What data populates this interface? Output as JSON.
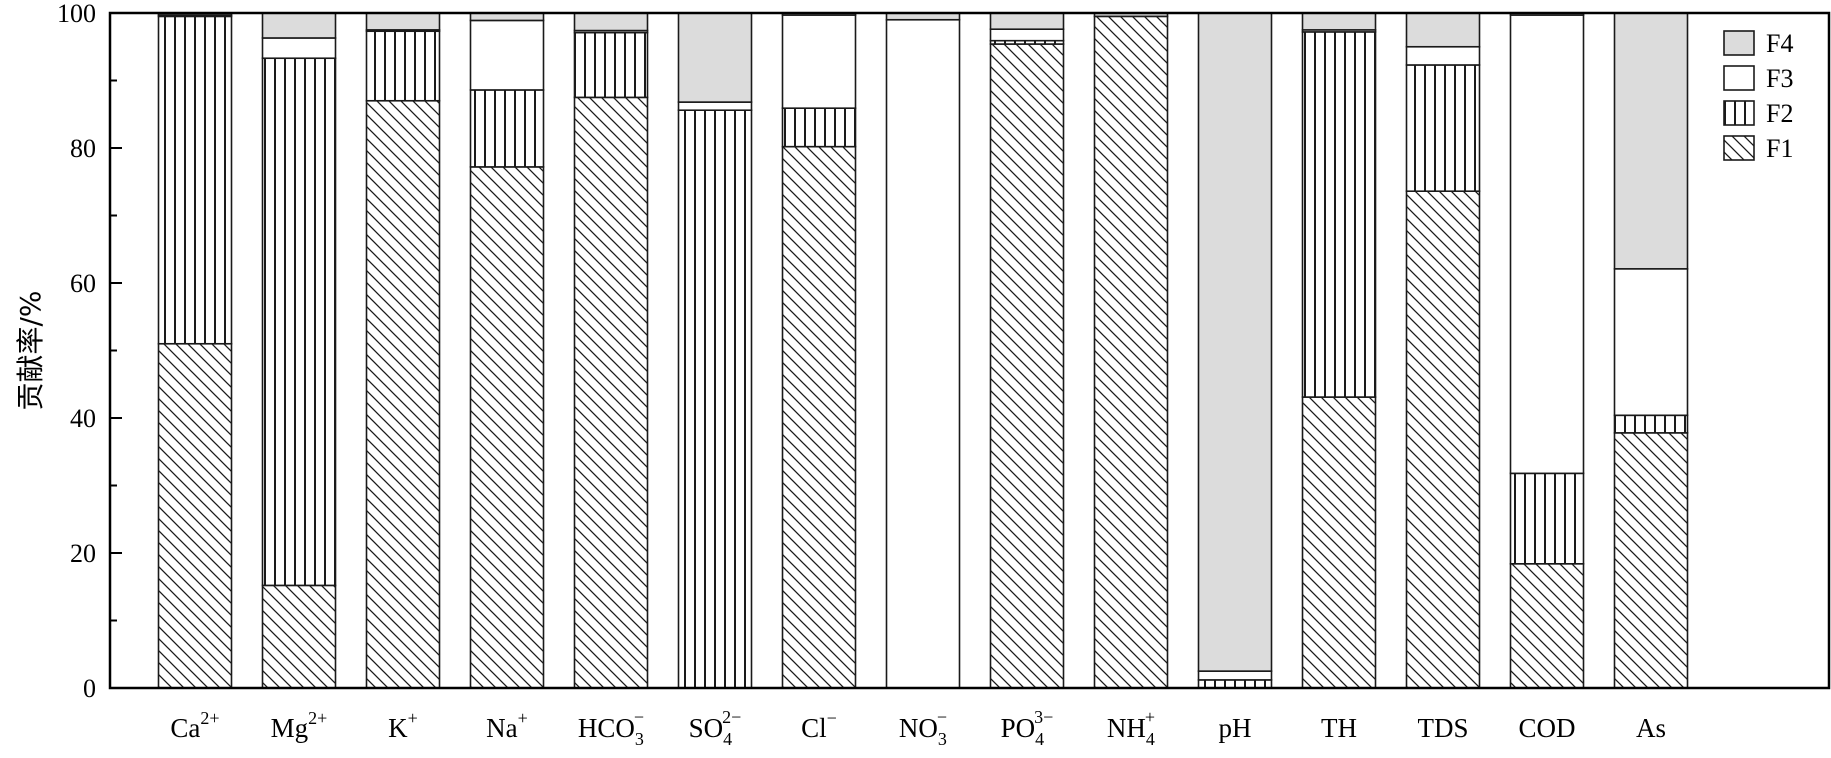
{
  "chart_data": {
    "type": "bar",
    "stacked": true,
    "ylabel": "贡献率/%",
    "ylim": [
      0,
      100
    ],
    "yticks": [
      0,
      20,
      40,
      60,
      80,
      100
    ],
    "grid": false,
    "legend_position": "top-right",
    "categories": [
      {
        "base": "Ca",
        "sup": "2+",
        "sub": ""
      },
      {
        "base": "Mg",
        "sup": "2+",
        "sub": ""
      },
      {
        "base": "K",
        "sup": "+",
        "sub": ""
      },
      {
        "base": "Na",
        "sup": "+",
        "sub": ""
      },
      {
        "base": "HCO",
        "sup": "−",
        "sub": "3"
      },
      {
        "base": "SO",
        "sup": "2−",
        "sub": "4"
      },
      {
        "base": "Cl",
        "sup": "−",
        "sub": ""
      },
      {
        "base": "NO",
        "sup": "−",
        "sub": "3"
      },
      {
        "base": "PO",
        "sup": "3−",
        "sub": "4"
      },
      {
        "base": "NH",
        "sup": "+",
        "sub": "4"
      },
      {
        "base": "pH",
        "sup": "",
        "sub": ""
      },
      {
        "base": "TH",
        "sup": "",
        "sub": ""
      },
      {
        "base": "TDS",
        "sup": "",
        "sub": ""
      },
      {
        "base": "COD",
        "sup": "",
        "sub": ""
      },
      {
        "base": "As",
        "sup": "",
        "sub": ""
      }
    ],
    "series": [
      {
        "name": "F1",
        "pattern": "diagonal-hatch",
        "values": [
          51.0,
          15.2,
          87.0,
          77.2,
          87.5,
          0.0,
          80.2,
          0.0,
          95.4,
          99.5,
          0.0,
          43.1,
          73.6,
          18.4,
          37.8
        ]
      },
      {
        "name": "F2",
        "pattern": "vertical-hatch",
        "values": [
          48.5,
          78.1,
          10.3,
          11.4,
          9.6,
          85.6,
          5.7,
          0.0,
          0.5,
          0.0,
          1.2,
          54.1,
          18.7,
          13.4,
          2.6
        ]
      },
      {
        "name": "F3",
        "pattern": "white",
        "values": [
          0.2,
          3.0,
          0.2,
          10.3,
          0.3,
          1.2,
          13.8,
          99.0,
          1.7,
          0.0,
          1.3,
          0.3,
          2.7,
          67.9,
          21.7
        ]
      },
      {
        "name": "F4",
        "pattern": "gray",
        "values": [
          0.3,
          3.7,
          2.5,
          1.1,
          2.6,
          13.2,
          0.3,
          1.0,
          2.4,
          0.5,
          97.5,
          2.5,
          5.0,
          0.3,
          37.9
        ]
      }
    ],
    "legend_order": [
      "F4",
      "F3",
      "F2",
      "F1"
    ],
    "colors": {
      "gray": "#dcdcdc",
      "white": "#ffffff",
      "stroke": "#1a1a1a"
    }
  }
}
